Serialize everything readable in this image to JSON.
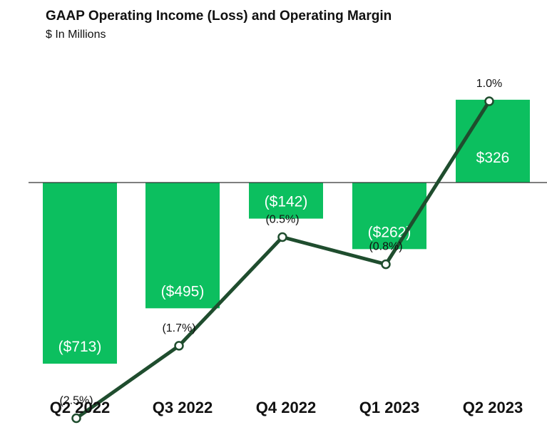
{
  "chart_data": {
    "type": "bar",
    "title": "GAAP Operating Income (Loss) and Operating Margin",
    "subtitle": "$ In Millions",
    "categories": [
      "Q2 2022",
      "Q3 2022",
      "Q4 2022",
      "Q1 2023",
      "Q2 2023"
    ],
    "series": [
      {
        "type": "bar",
        "values": [
          -713,
          -495,
          -142,
          -262,
          326
        ],
        "data_labels": [
          "($713)",
          "($495)",
          "($142)",
          "($262)",
          "$326"
        ]
      },
      {
        "type": "line",
        "values": [
          -2.5,
          -1.7,
          -0.5,
          -0.8,
          1.0
        ],
        "data_labels": [
          "(2.5%)",
          "(1.7%)",
          "(0.5%)",
          "(0.8%)",
          "1.0%"
        ]
      }
    ],
    "colors": {
      "bar": "#0cbf5f",
      "line": "#1f4d2e",
      "baseline": "#333333"
    },
    "grid": false,
    "legend": "none"
  }
}
